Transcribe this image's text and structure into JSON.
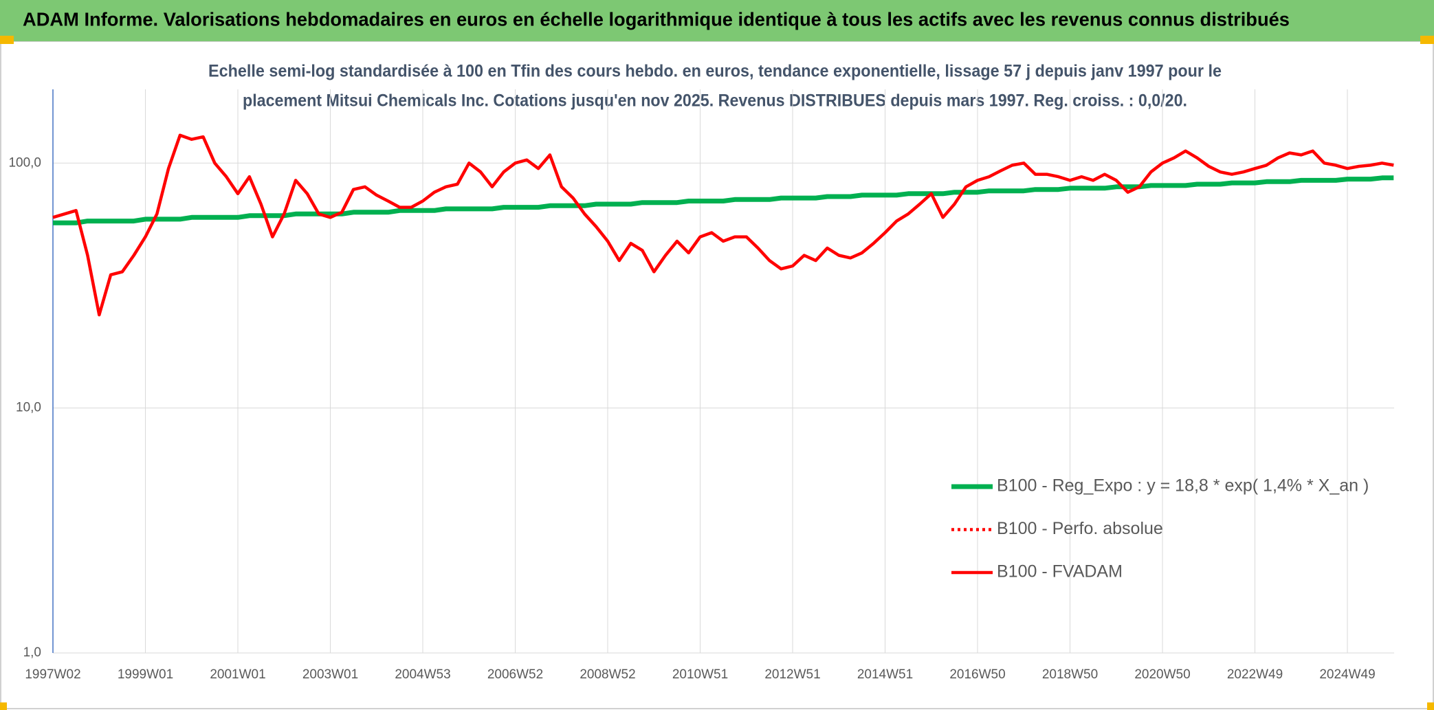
{
  "chart_data": {
    "type": "line",
    "title": "ADAM Informe. Valorisations hebdomadaires en euros en échelle logarithmique identique à tous les actifs avec les revenus connus distribués",
    "subtitle": [
      "Echelle semi-log standardisée à 100 en Tfin des cours hebdo. en euros, tendance exponentielle, lissage 57 j depuis janv 1997 pour le",
      "placement Mitsui Chemicals Inc. Cotations jusqu'en nov 2025. Revenus DISTRIBUES depuis mars 1997. Reg. croiss. : 0,0/20."
    ],
    "log_scale": true,
    "grid": true,
    "legend": "lower right",
    "ylim": [
      1,
      200
    ],
    "yticks": [
      {
        "value": 1,
        "label": "1,0"
      },
      {
        "value": 10,
        "label": "10,0"
      },
      {
        "value": 100,
        "label": "100,0"
      }
    ],
    "categories": [
      "1997W02",
      null,
      null,
      null,
      null,
      null,
      null,
      null,
      "1999W01",
      null,
      null,
      null,
      null,
      null,
      null,
      null,
      "2001W01",
      null,
      null,
      null,
      null,
      null,
      null,
      null,
      "2003W01",
      null,
      null,
      null,
      null,
      null,
      null,
      null,
      "2004W53",
      null,
      null,
      null,
      null,
      null,
      null,
      null,
      "2006W52",
      null,
      null,
      null,
      null,
      null,
      null,
      null,
      "2008W52",
      null,
      null,
      null,
      null,
      null,
      null,
      null,
      "2010W51",
      null,
      null,
      null,
      null,
      null,
      null,
      null,
      "2012W51",
      null,
      null,
      null,
      null,
      null,
      null,
      null,
      "2014W51",
      null,
      null,
      null,
      null,
      null,
      null,
      null,
      "2016W50",
      null,
      null,
      null,
      null,
      null,
      null,
      null,
      "2018W50",
      null,
      null,
      null,
      null,
      null,
      null,
      null,
      "2020W50",
      null,
      null,
      null,
      null,
      null,
      null,
      null,
      "2022W49",
      null,
      null,
      null,
      null,
      null,
      null,
      null,
      "2024W49",
      null,
      null,
      null,
      null
    ],
    "series": [
      {
        "name": "B100 - Reg_Expo : y = 18,8 * exp( 1,4% *  X_an )",
        "color": "#00b050",
        "dash": "solid",
        "values": [
          57,
          57,
          57,
          58,
          58,
          58,
          58,
          58,
          59,
          59,
          59,
          59,
          60,
          60,
          60,
          60,
          60,
          61,
          61,
          61,
          61,
          62,
          62,
          62,
          62,
          62,
          63,
          63,
          63,
          63,
          64,
          64,
          64,
          64,
          65,
          65,
          65,
          65,
          65,
          66,
          66,
          66,
          66,
          67,
          67,
          67,
          67,
          68,
          68,
          68,
          68,
          69,
          69,
          69,
          69,
          70,
          70,
          70,
          70,
          71,
          71,
          71,
          71,
          72,
          72,
          72,
          72,
          73,
          73,
          73,
          74,
          74,
          74,
          74,
          75,
          75,
          75,
          75,
          76,
          76,
          76,
          77,
          77,
          77,
          77,
          78,
          78,
          78,
          79,
          79,
          79,
          79,
          80,
          80,
          80,
          81,
          81,
          81,
          81,
          82,
          82,
          82,
          83,
          83,
          83,
          84,
          84,
          84,
          85,
          85,
          85,
          85,
          86,
          86,
          86,
          87,
          87
        ]
      },
      {
        "name": "B100 - Perfo. absolue",
        "color": "#ff0000",
        "dash": "dotted",
        "values": [
          null,
          null,
          null,
          null,
          null,
          null,
          null,
          null,
          null,
          null,
          null,
          null,
          null,
          null,
          null,
          null,
          null,
          null,
          null,
          null,
          null,
          null,
          null,
          null,
          null,
          null,
          null,
          null,
          null,
          null,
          null,
          null,
          null,
          null,
          null,
          null,
          null,
          null,
          null,
          null,
          null,
          null,
          null,
          null,
          null,
          null,
          null,
          null,
          null,
          null,
          null,
          null,
          null,
          null,
          null,
          null,
          null,
          null,
          null,
          null,
          null,
          null,
          null,
          null,
          null,
          null,
          null,
          null,
          null,
          null,
          null,
          null,
          null,
          null,
          null,
          null,
          null,
          null,
          null,
          null,
          null,
          null,
          null,
          null,
          null,
          null,
          null,
          null,
          null,
          null,
          null,
          null,
          null,
          null,
          null,
          null,
          null,
          null,
          null,
          null,
          null,
          null,
          null,
          null,
          null,
          null,
          null,
          null,
          null,
          null,
          null,
          null,
          null,
          null,
          null,
          null,
          null
        ]
      },
      {
        "name": "B100 - FVADAM",
        "color": "#ff0000",
        "dash": "solid",
        "values": [
          60,
          62,
          64,
          42,
          24,
          35,
          36,
          42,
          50,
          62,
          95,
          130,
          125,
          128,
          100,
          88,
          75,
          88,
          68,
          50,
          62,
          85,
          75,
          62,
          60,
          63,
          78,
          80,
          74,
          70,
          66,
          66,
          70,
          76,
          80,
          82,
          100,
          92,
          80,
          92,
          100,
          103,
          95,
          108,
          80,
          72,
          62,
          55,
          48,
          40,
          47,
          44,
          36,
          42,
          48,
          43,
          50,
          52,
          48,
          50,
          50,
          45,
          40,
          37,
          38,
          42,
          40,
          45,
          42,
          41,
          43,
          47,
          52,
          58,
          62,
          68,
          75,
          60,
          68,
          80,
          85,
          88,
          93,
          98,
          100,
          90,
          90,
          88,
          85,
          88,
          85,
          90,
          85,
          76,
          80,
          92,
          100,
          105,
          112,
          105,
          97,
          92,
          90,
          92,
          95,
          98,
          105,
          110,
          108,
          112,
          100,
          98,
          95,
          97,
          98,
          100,
          98
        ]
      }
    ]
  }
}
